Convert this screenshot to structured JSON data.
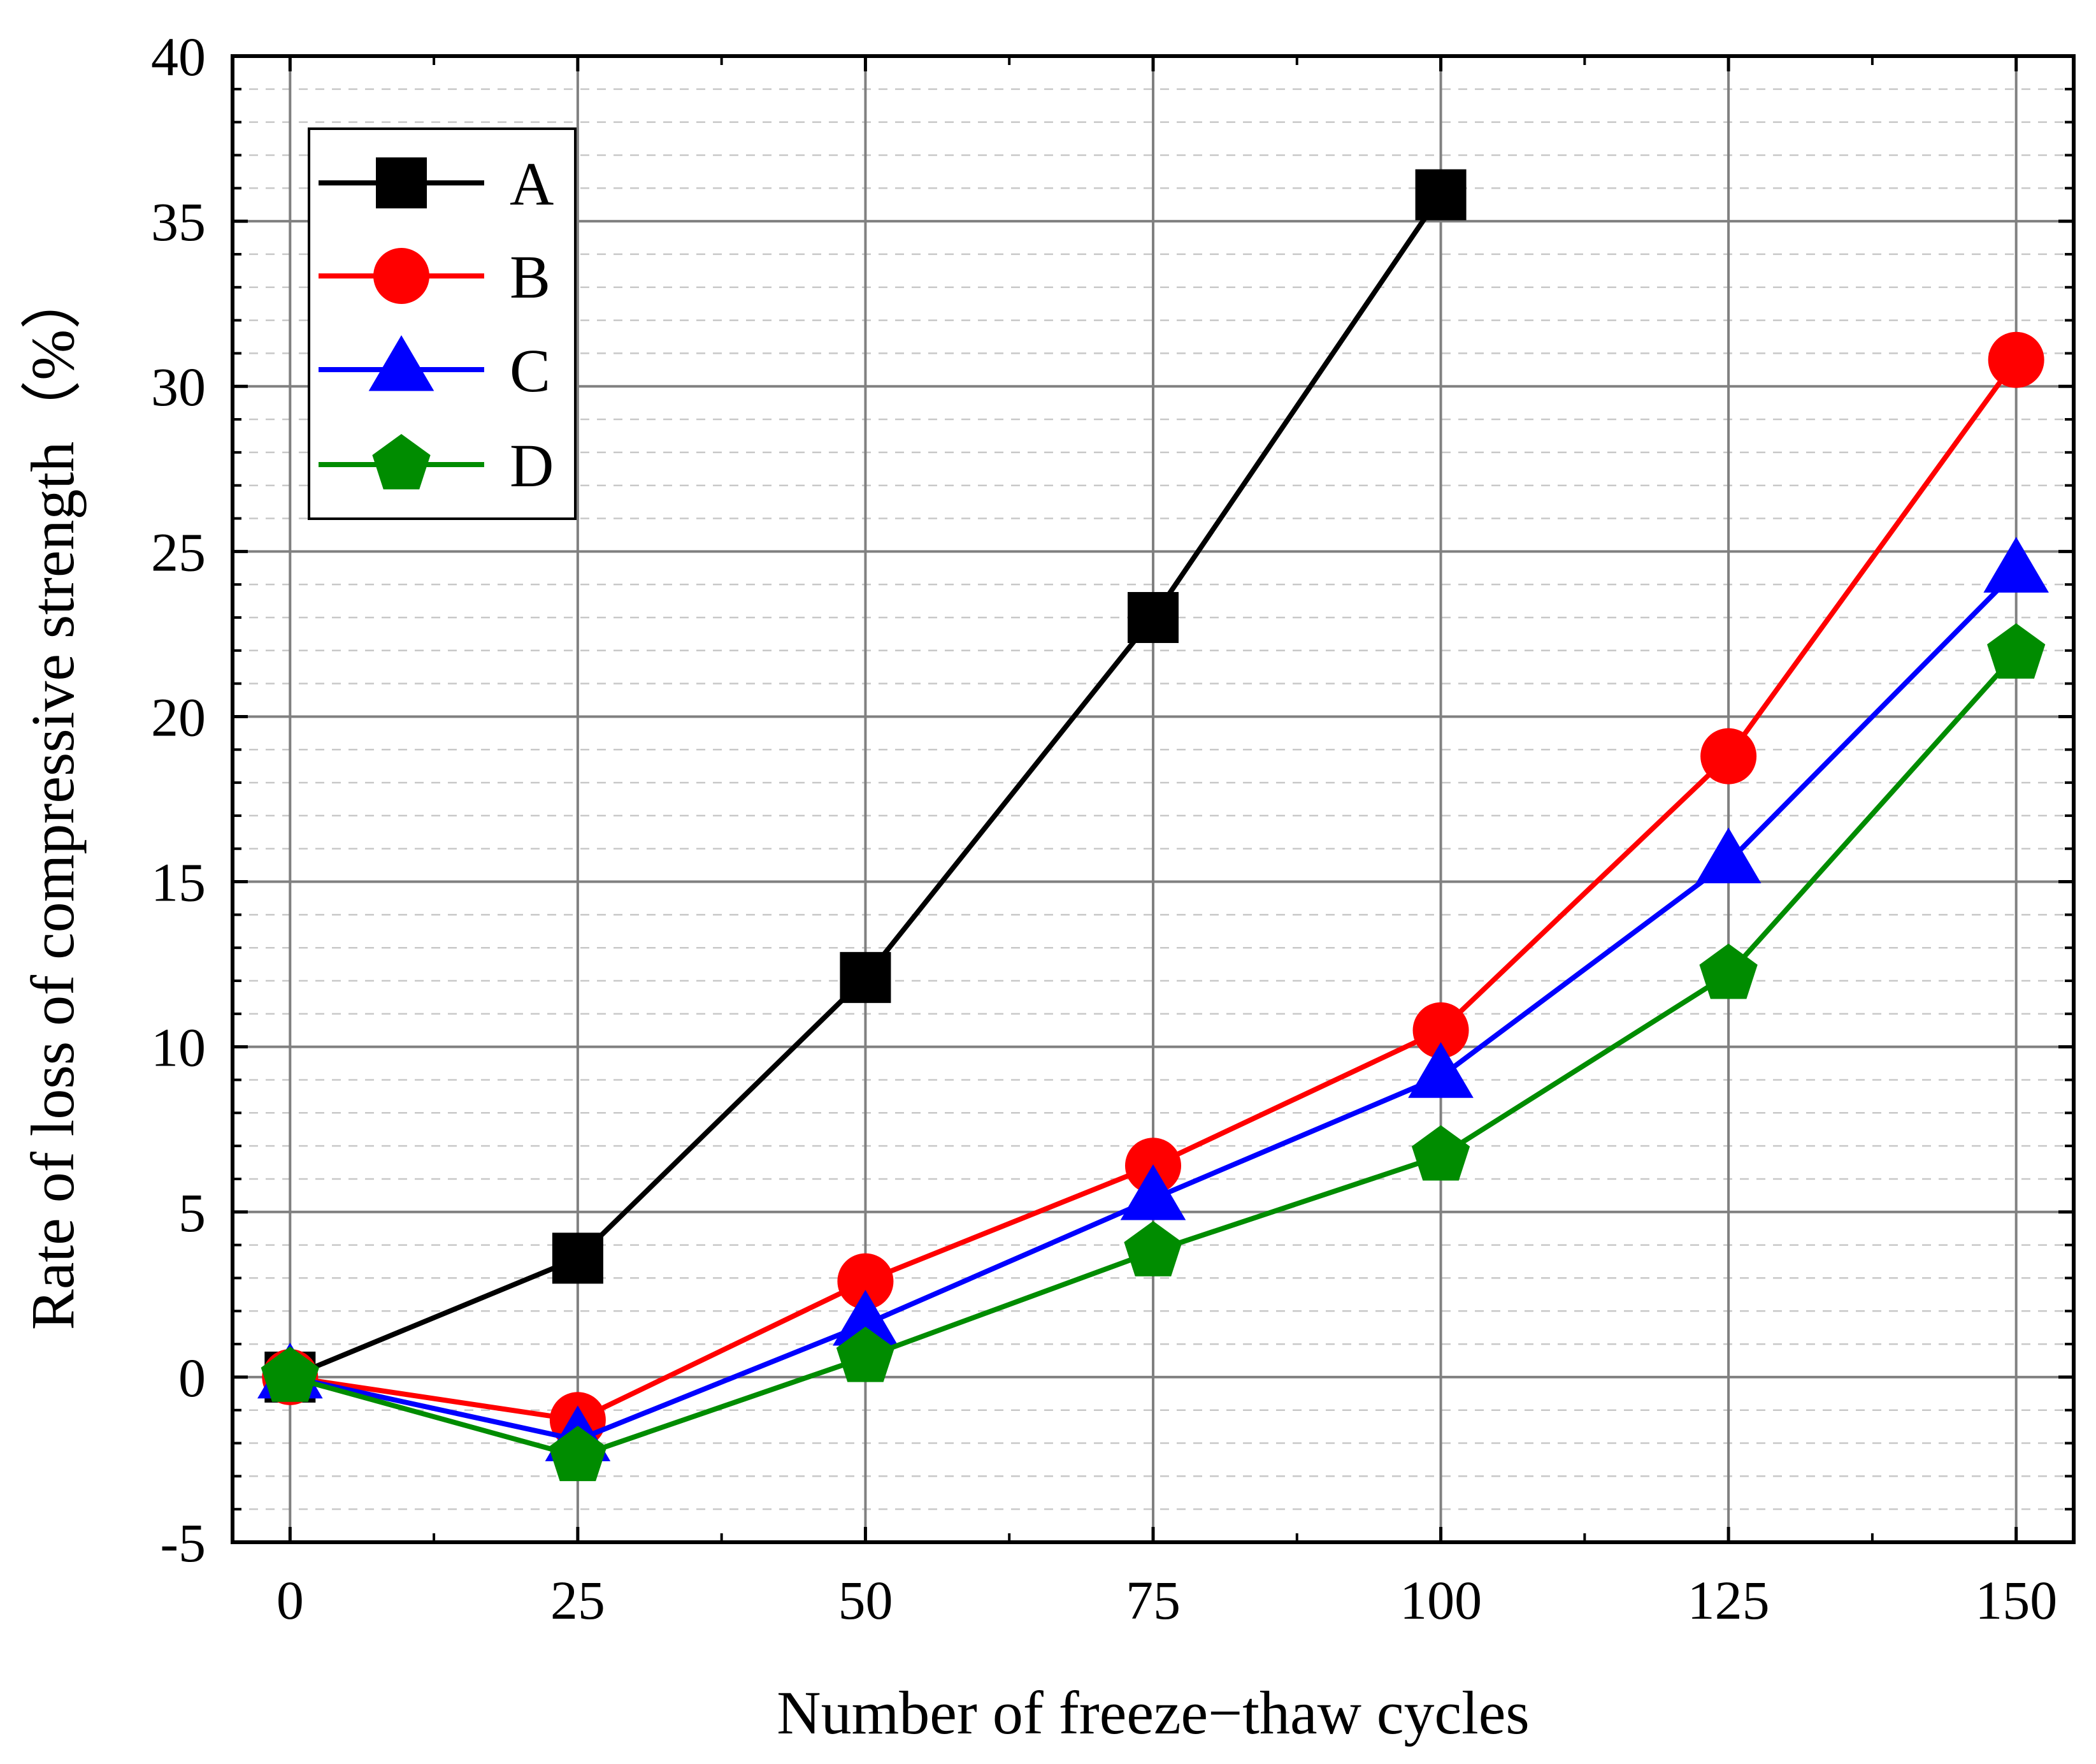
{
  "chart_data": {
    "type": "line",
    "title": "",
    "xlabel": "Number of freeze−thaw cycles",
    "ylabel": "Rate of loss of compressive strength（%）",
    "x": [
      0,
      25,
      50,
      75,
      100,
      125,
      150
    ],
    "xlim": [
      -5,
      155
    ],
    "ylim": [
      -5,
      40
    ],
    "xticks": [
      "0",
      "25",
      "50",
      "75",
      "100",
      "125",
      "150"
    ],
    "yticks": [
      "-5",
      "0",
      "5",
      "10",
      "15",
      "20",
      "25",
      "30",
      "35",
      "40"
    ],
    "grid": true,
    "legend_position": "top-left",
    "series": [
      {
        "name": "A",
        "color": "#000000",
        "marker": "square",
        "values": [
          0,
          3.6,
          12.1,
          23.0,
          35.8,
          null,
          null
        ]
      },
      {
        "name": "B",
        "color": "#ff0000",
        "marker": "circle",
        "values": [
          0,
          -1.3,
          2.9,
          6.4,
          10.5,
          18.8,
          30.8
        ]
      },
      {
        "name": "C",
        "color": "#0000ff",
        "marker": "triangle",
        "values": [
          0,
          -1.9,
          1.6,
          5.4,
          9.1,
          15.6,
          24.4
        ]
      },
      {
        "name": "D",
        "color": "#008c00",
        "marker": "pentagon",
        "values": [
          0,
          -2.4,
          0.6,
          3.8,
          6.7,
          12.2,
          21.9
        ]
      }
    ]
  }
}
